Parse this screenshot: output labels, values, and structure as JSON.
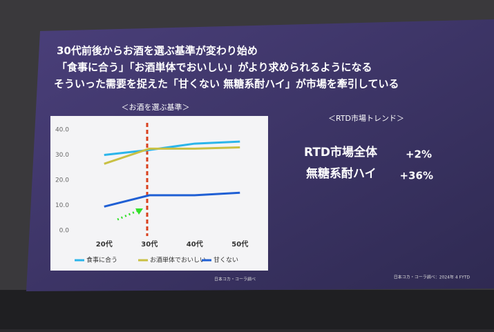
{
  "headline": [
    "30代前後からお酒を選ぶ基準が変わり始め",
    "「食事に合う」「お酒単体でおいしい」がより求められるようになる",
    "そういった需要を捉えた「甘くない 無糖系酎ハイ」が市場を牽引している"
  ],
  "trend": {
    "title": "＜RTD市場トレンド＞",
    "rows": [
      [
        "RTD市場全体",
        "+2%"
      ],
      [
        "無糖系酎ハイ",
        "+36%"
      ]
    ],
    "source": "日本コカ・コーラ調べ：2024年 4 FYTD"
  },
  "chart_data": {
    "type": "line",
    "title": "＜お酒を選ぶ基準＞",
    "source": "日本コカ・コーラ調べ",
    "categories": [
      "20代",
      "30代",
      "40代",
      "50代"
    ],
    "series": [
      {
        "name": "食事に合う",
        "color": "#2bb5ea",
        "values": [
          30,
          32,
          34.5,
          35.3
        ]
      },
      {
        "name": "お酒単体でおいしい",
        "color": "#c9c043",
        "values": [
          26.5,
          32.5,
          32.5,
          33
        ]
      },
      {
        "name": "甘くない",
        "color": "#1f5fd4",
        "values": [
          9.5,
          14,
          14,
          15
        ]
      }
    ],
    "ylim": [
      0,
      40
    ],
    "yticks": [
      {
        "value": 0,
        "label": "0.0"
      },
      {
        "value": 10,
        "label": "10.0"
      },
      {
        "value": 20,
        "label": "20.0"
      },
      {
        "value": 30,
        "label": "30.0"
      },
      {
        "value": 40,
        "label": "40.0"
      }
    ],
    "grid": false
  }
}
